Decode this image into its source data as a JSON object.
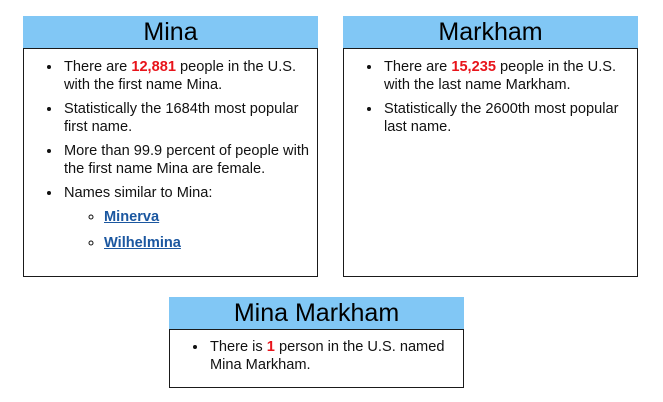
{
  "first": {
    "title": "Mina",
    "fact1_pre": "There are ",
    "fact1_num": "12,881",
    "fact1_post": " people in the U.S. with the first name Mina.",
    "fact2": "Statistically the 1684th most popular first name.",
    "fact3": "More than 99.9 percent of people with the first name Mina are female.",
    "fact4": "Names similar to Mina:",
    "similar": [
      "Minerva",
      "Wilhelmina"
    ]
  },
  "last": {
    "title": "Markham",
    "fact1_pre": "There are ",
    "fact1_num": "15,235",
    "fact1_post": " people in the U.S. with the last name Markham.",
    "fact2": "Statistically the 2600th most popular last name."
  },
  "full": {
    "title": "Mina Markham",
    "fact1_pre": "There is ",
    "fact1_num": "1",
    "fact1_post": " person in the U.S. named Mina Markham."
  },
  "colors": {
    "header_bg": "#81c7f5",
    "highlight": "#e8141b",
    "link": "#1b57a0"
  }
}
